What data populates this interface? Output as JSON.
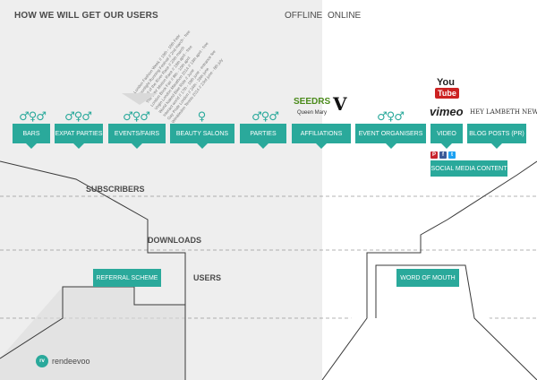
{
  "title": "HOW WE WILL GET OUR USERS",
  "modes": {
    "offline": "OFFLINE",
    "online": "ONLINE"
  },
  "channels": [
    {
      "label": "BARS",
      "icons": "♂♀♂"
    },
    {
      "label": "EXPAT PARTIES",
      "icons": "♂♀♂"
    },
    {
      "label": "EVENTS/FAIRS",
      "icons": "♂♀♂"
    },
    {
      "label": "BEAUTY SALONS",
      "icons": "♀"
    },
    {
      "label": "PARTIES",
      "icons": "♂♀♂"
    },
    {
      "label": "AFFILIATIONS"
    },
    {
      "label": "EVENT ORGANISERS",
      "icons": "♂♀♂"
    },
    {
      "label": "VIDEO"
    },
    {
      "label": "BLOG POSTS (PR)"
    }
  ],
  "social_media": "SOCIAL MEDIA CONTENT",
  "events_list": [
    "London Fashion Week // 19th - 16th Febr",
    "Moonlight Running Festival // 2nd march - free",
    "Head of the River Race // 23th march",
    "The WAY Motion Race // 19th april - free",
    "London Book Fair // 8th - 10th april",
    "Virgin London Marathon 2014 // 13th april - free",
    "World Naked Bike Ride // June",
    "Interact world // 17th - 19th june - entrance fee",
    "Gay Pride London // 24th - 29th june",
    "Wimbledon Tennis 2014 // 23rd june - 6th july"
  ],
  "stages": {
    "subscribers": "SUBSCRIBERS",
    "downloads": "DOWNLOADS",
    "users": "USERS"
  },
  "referral": "REFERRAL SCHEME",
  "word_of_mouth": "WORD OF MOUTH",
  "logos": {
    "seedrs": "SEEDRS",
    "queen_mary": "Queen Mary",
    "v": "V",
    "youtube_you": "You",
    "youtube_tube": "Tube",
    "vimeo": "vimeo",
    "blog": "HEY LAMBETH NEWS",
    "social": [
      "P",
      "f",
      "t"
    ]
  },
  "brand": {
    "badge": "rv",
    "name": "rendeevoo"
  },
  "colors": {
    "teal": "#2aa99b",
    "offline_bg": "#eeeeee",
    "text": "#4a4a4a",
    "youtube": "#cc2222"
  }
}
